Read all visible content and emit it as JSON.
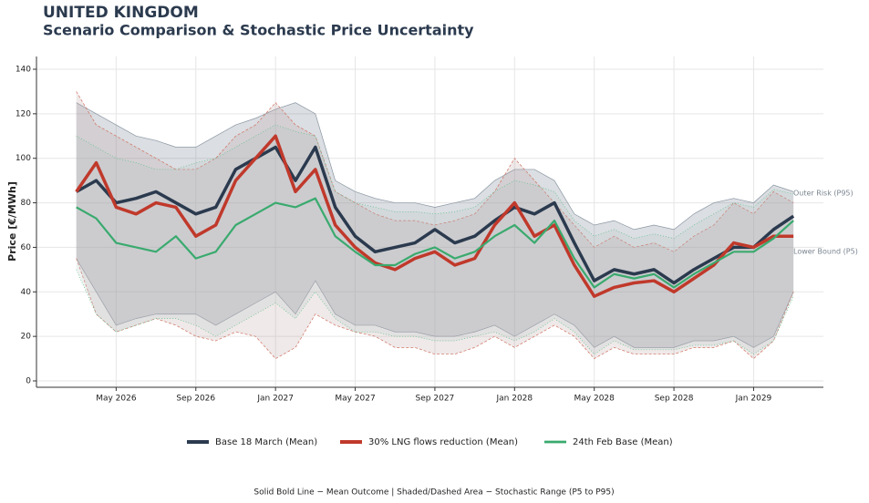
{
  "chart_data": {
    "type": "line",
    "title": "UNITED KINGDOM",
    "subtitle": "Scenario Comparison & Stochastic Price Uncertainty",
    "y_label": "Price [€/MWh]",
    "x": [
      "2026-03",
      "2026-04",
      "2026-05",
      "2026-06",
      "2026-07",
      "2026-08",
      "2026-09",
      "2026-10",
      "2026-11",
      "2026-12",
      "2027-01",
      "2027-02",
      "2027-03",
      "2027-04",
      "2027-05",
      "2027-06",
      "2027-07",
      "2027-08",
      "2027-09",
      "2027-10",
      "2027-11",
      "2027-12",
      "2028-01",
      "2028-02",
      "2028-03",
      "2028-04",
      "2028-05",
      "2028-06",
      "2028-07",
      "2028-08",
      "2028-09",
      "2028-10",
      "2028-11",
      "2028-12",
      "2029-01",
      "2029-02",
      "2029-03"
    ],
    "xlim": [
      "2026-01",
      "2029-04"
    ],
    "xticks": [
      {
        "value": "2026-05",
        "label": "May 2026"
      },
      {
        "value": "2026-09",
        "label": "Sep 2026"
      },
      {
        "value": "2027-01",
        "label": "Jan 2027"
      },
      {
        "value": "2027-05",
        "label": "May 2027"
      },
      {
        "value": "2027-09",
        "label": "Sep 2027"
      },
      {
        "value": "2028-01",
        "label": "Jan 2028"
      },
      {
        "value": "2028-05",
        "label": "May 2028"
      },
      {
        "value": "2028-09",
        "label": "Sep 2028"
      },
      {
        "value": "2029-01",
        "label": "Jan 2029"
      }
    ],
    "ylim": [
      0,
      140
    ],
    "yticks": [
      0,
      20,
      40,
      60,
      80,
      100,
      120,
      140
    ],
    "grid": true,
    "legend": "bottom",
    "series": [
      {
        "name": "Base 18 March (Mean)",
        "color": "#2b3a4e",
        "values": [
          85,
          90,
          80,
          82,
          85,
          80,
          75,
          78,
          95,
          100,
          105,
          90,
          105,
          78,
          65,
          58,
          60,
          62,
          68,
          62,
          65,
          72,
          78,
          75,
          80,
          62,
          45,
          50,
          48,
          50,
          44,
          50,
          55,
          60,
          60,
          68,
          74
        ],
        "upper": [
          125,
          120,
          115,
          110,
          108,
          105,
          105,
          110,
          115,
          118,
          122,
          125,
          120,
          90,
          85,
          82,
          80,
          80,
          78,
          80,
          82,
          90,
          95,
          95,
          90,
          75,
          70,
          72,
          68,
          70,
          68,
          75,
          80,
          82,
          80,
          88,
          85
        ],
        "lower": [
          55,
          40,
          25,
          28,
          30,
          30,
          30,
          25,
          30,
          35,
          40,
          30,
          45,
          30,
          25,
          25,
          22,
          22,
          20,
          20,
          22,
          25,
          20,
          25,
          30,
          25,
          15,
          20,
          15,
          15,
          15,
          18,
          18,
          20,
          15,
          20,
          40
        ]
      },
      {
        "name": "30% LNG flows reduction (Mean)",
        "color": "#c0392b",
        "values": [
          85,
          98,
          78,
          75,
          80,
          78,
          65,
          70,
          90,
          100,
          110,
          85,
          95,
          70,
          60,
          53,
          50,
          55,
          58,
          52,
          55,
          70,
          80,
          65,
          70,
          52,
          38,
          42,
          44,
          45,
          40,
          46,
          52,
          62,
          60,
          65,
          65
        ],
        "upper": [
          130,
          115,
          110,
          105,
          100,
          95,
          95,
          100,
          110,
          115,
          125,
          115,
          110,
          85,
          80,
          75,
          72,
          72,
          70,
          72,
          75,
          85,
          100,
          90,
          80,
          70,
          60,
          65,
          60,
          62,
          58,
          65,
          70,
          80,
          75,
          85,
          80
        ],
        "lower": [
          55,
          30,
          22,
          25,
          28,
          25,
          20,
          18,
          22,
          20,
          10,
          15,
          30,
          25,
          22,
          20,
          15,
          15,
          12,
          12,
          15,
          20,
          15,
          20,
          25,
          20,
          10,
          15,
          12,
          12,
          12,
          15,
          15,
          18,
          10,
          18,
          40
        ]
      },
      {
        "name": "24th Feb Base (Mean)",
        "color": "#3aaa6e",
        "values": [
          78,
          73,
          62,
          60,
          58,
          65,
          55,
          58,
          70,
          75,
          80,
          78,
          82,
          65,
          58,
          52,
          52,
          57,
          60,
          55,
          58,
          65,
          70,
          62,
          72,
          55,
          42,
          48,
          46,
          48,
          42,
          48,
          53,
          58,
          58,
          64,
          72
        ],
        "upper": [
          110,
          105,
          100,
          98,
          95,
          95,
          98,
          100,
          105,
          110,
          115,
          112,
          110,
          85,
          80,
          78,
          76,
          76,
          75,
          76,
          78,
          85,
          90,
          88,
          85,
          72,
          65,
          68,
          64,
          66,
          64,
          70,
          75,
          80,
          78,
          86,
          84
        ],
        "lower": [
          50,
          30,
          22,
          25,
          28,
          28,
          25,
          20,
          25,
          30,
          35,
          28,
          40,
          28,
          22,
          22,
          20,
          20,
          18,
          18,
          20,
          22,
          18,
          22,
          28,
          22,
          12,
          18,
          14,
          14,
          14,
          16,
          16,
          18,
          12,
          18,
          38
        ]
      }
    ],
    "annotations": [
      "Outer Risk (P95)",
      "Lower Bound (P5)"
    ],
    "note": "Solid Bold Line − Mean Outcome | Shaded/Dashed Area − Stochastic Range (P5 to P95)"
  }
}
